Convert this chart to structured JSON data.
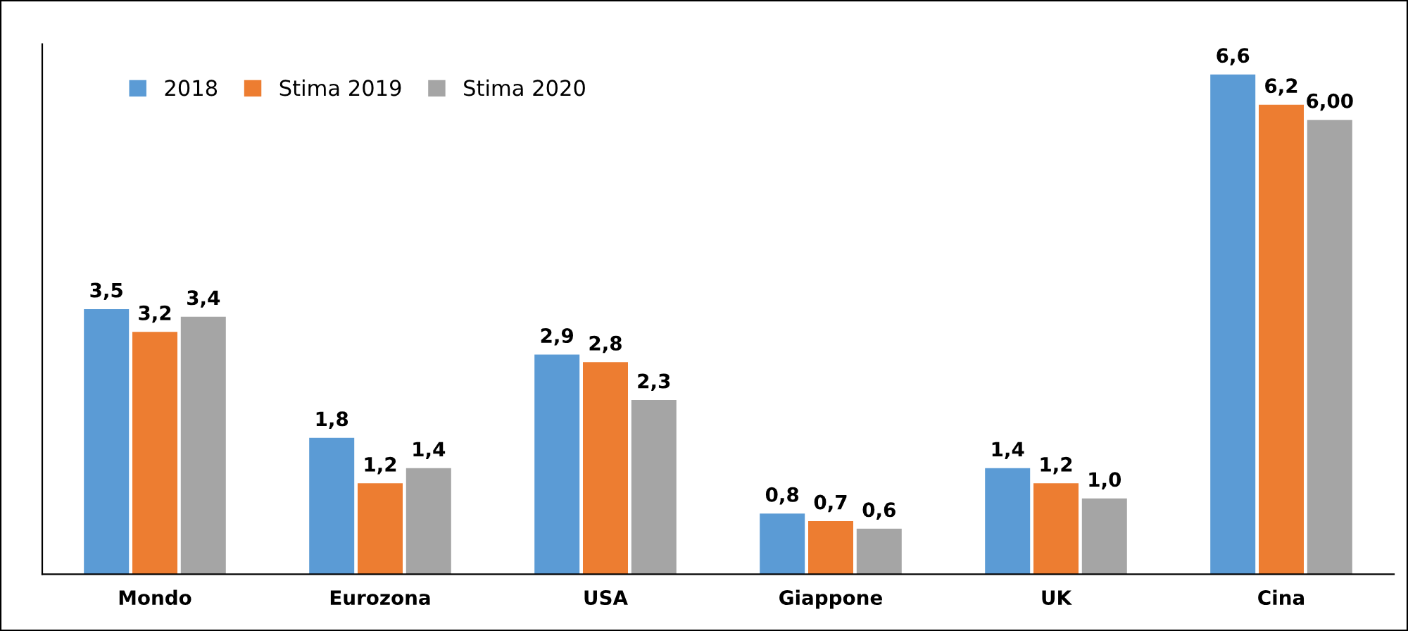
{
  "chart_data": {
    "type": "bar",
    "categories": [
      "Mondo",
      "Eurozona",
      "USA",
      "Giappone",
      "UK",
      "Cina"
    ],
    "series": [
      {
        "name": "2018",
        "color": "#5b9bd5",
        "values": [
          3.5,
          1.8,
          2.9,
          0.8,
          1.4,
          6.6
        ],
        "value_labels": [
          "3,5",
          "1,8",
          "2,9",
          "0,8",
          "1,4",
          "6,6"
        ]
      },
      {
        "name": "Stima 2019",
        "color": "#ed7d31",
        "values": [
          3.2,
          1.2,
          2.8,
          0.7,
          1.2,
          6.2
        ],
        "value_labels": [
          "3,2",
          "1,2",
          "2,8",
          "0,7",
          "1,2",
          "6,2"
        ]
      },
      {
        "name": "Stima 2020",
        "color": "#a5a5a5",
        "values": [
          3.4,
          1.4,
          2.3,
          0.6,
          1.0,
          6.0
        ],
        "value_labels": [
          "3,4",
          "1,4",
          "2,3",
          "0,6",
          "1,0",
          "6,00"
        ]
      }
    ],
    "ylim": [
      0,
      7
    ],
    "tick_labels": "x",
    "grid": false,
    "legend": "top left"
  }
}
